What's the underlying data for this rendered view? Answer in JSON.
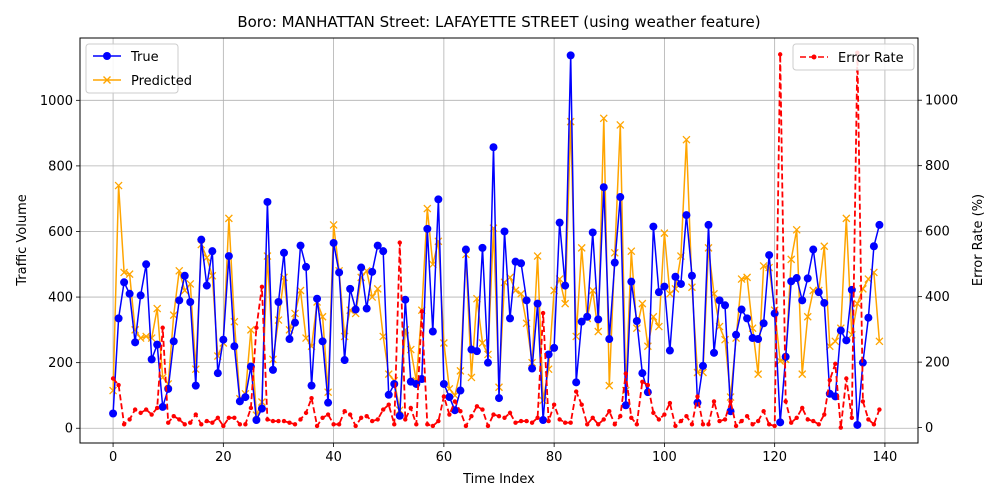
{
  "chart_data": {
    "type": "line",
    "title": "Boro: MANHATTAN Street: LAFAYETTE STREET (using weather feature)",
    "xlabel": "Time Index",
    "ylabel": "Traffic Volume",
    "y2label": "Error Rate (%)",
    "xlim": [
      -6,
      146
    ],
    "ylim": [
      -45,
      1190
    ],
    "y2lim": [
      -47,
      1190
    ],
    "xticks": [
      0,
      20,
      40,
      60,
      80,
      100,
      120,
      140
    ],
    "yticks": [
      0,
      200,
      400,
      600,
      800,
      1000
    ],
    "y2ticks": [
      0,
      200,
      400,
      600,
      800,
      1000
    ],
    "grid": true,
    "legend_left_placement": "top-left",
    "legend_right_placement": "top-right",
    "series": [
      {
        "name": "True",
        "color": "#0000ff",
        "marker": "circle",
        "axis": "left",
        "values": [
          45,
          335,
          445,
          410,
          262,
          405,
          500,
          210,
          255,
          65,
          120,
          265,
          390,
          465,
          385,
          130,
          575,
          435,
          540,
          168,
          270,
          525,
          250,
          82,
          95,
          188,
          25,
          60,
          690,
          178,
          385,
          535,
          272,
          322,
          557,
          492,
          130,
          395,
          265,
          78,
          565,
          475,
          208,
          425,
          362,
          490,
          365,
          477,
          557,
          540,
          102,
          135,
          38,
          392,
          142,
          135,
          150,
          608,
          295,
          698,
          135,
          95,
          55,
          115,
          545,
          240,
          235,
          550,
          200,
          857,
          92,
          600,
          335,
          508,
          503,
          390,
          182,
          380,
          25,
          225,
          245,
          627,
          435,
          1137,
          140,
          325,
          340,
          597,
          332,
          735,
          272,
          505,
          705,
          70,
          447,
          327,
          168,
          110,
          615,
          415,
          432,
          237,
          462,
          440,
          650,
          465,
          78,
          190,
          620,
          230,
          390,
          375,
          52,
          285,
          362,
          335,
          275,
          272,
          320,
          528,
          350,
          18,
          218,
          448,
          458,
          390,
          457,
          545,
          415,
          382,
          105,
          97,
          298,
          268,
          422,
          10,
          200,
          337,
          555,
          620
        ]
      },
      {
        "name": "Predicted",
        "color": "#ffa500",
        "marker": "x",
        "axis": "left",
        "values": [
          115,
          740,
          475,
          470,
          300,
          275,
          280,
          275,
          365,
          155,
          135,
          345,
          480,
          420,
          440,
          180,
          560,
          520,
          465,
          220,
          260,
          640,
          325,
          90,
          105,
          300,
          40,
          80,
          525,
          210,
          330,
          460,
          300,
          350,
          420,
          275,
          250,
          385,
          340,
          110,
          620,
          480,
          280,
          360,
          350,
          460,
          480,
          400,
          425,
          280,
          165,
          145,
          55,
          300,
          240,
          145,
          360,
          670,
          500,
          570,
          260,
          120,
          100,
          175,
          530,
          155,
          395,
          260,
          225,
          610,
          125,
          445,
          460,
          420,
          410,
          320,
          200,
          525,
          85,
          180,
          420,
          455,
          380,
          935,
          280,
          550,
          335,
          420,
          295,
          945,
          130,
          535,
          925,
          115,
          540,
          305,
          380,
          250,
          340,
          310,
          595,
          410,
          425,
          525,
          880,
          430,
          170,
          170,
          550,
          410,
          310,
          270,
          95,
          275,
          455,
          460,
          305,
          165,
          495,
          490,
          360,
          205,
          210,
          515,
          605,
          165,
          340,
          420,
          420,
          555,
          250,
          265,
          305,
          640,
          285,
          380,
          425,
          455,
          475,
          265
        ]
      },
      {
        "name": "Error Rate",
        "color": "#ff0000",
        "marker": "dot",
        "dashed": true,
        "axis": "right",
        "values": [
          150,
          130,
          10,
          25,
          55,
          45,
          55,
          40,
          60,
          305,
          15,
          35,
          25,
          10,
          15,
          40,
          10,
          20,
          15,
          30,
          5,
          30,
          30,
          10,
          10,
          60,
          305,
          430,
          25,
          20,
          20,
          20,
          15,
          10,
          25,
          45,
          90,
          5,
          30,
          40,
          10,
          10,
          50,
          40,
          5,
          30,
          35,
          20,
          25,
          55,
          70,
          10,
          565,
          25,
          60,
          10,
          355,
          10,
          5,
          20,
          95,
          40,
          80,
          50,
          5,
          35,
          65,
          55,
          5,
          40,
          35,
          30,
          45,
          15,
          20,
          20,
          15,
          30,
          350,
          20,
          70,
          25,
          15,
          15,
          110,
          70,
          10,
          30,
          10,
          25,
          50,
          10,
          35,
          165,
          30,
          10,
          140,
          130,
          45,
          25,
          40,
          75,
          5,
          20,
          35,
          10,
          95,
          10,
          10,
          80,
          20,
          25,
          80,
          5,
          20,
          35,
          10,
          20,
          50,
          10,
          5,
          1140,
          80,
          15,
          30,
          60,
          25,
          20,
          10,
          40,
          145,
          195,
          0,
          150,
          30,
          1145,
          80,
          25,
          10,
          55
        ]
      }
    ]
  }
}
